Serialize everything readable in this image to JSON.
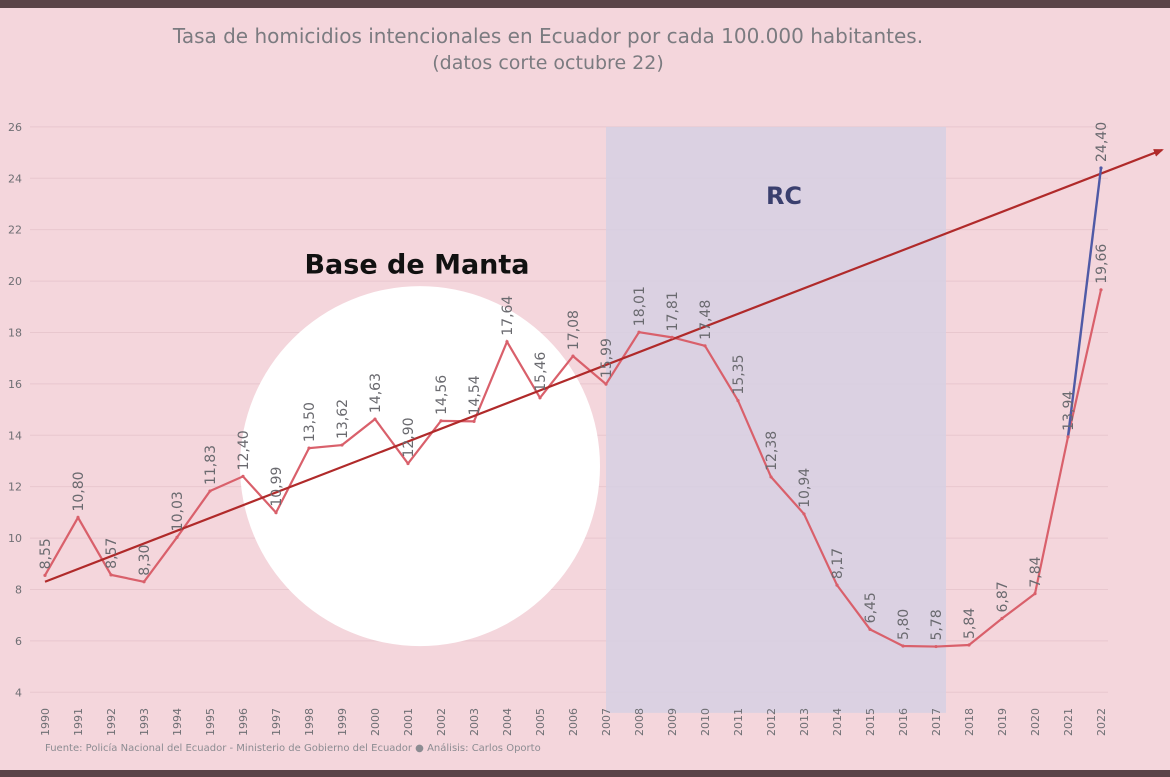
{
  "chart_data": {
    "type": "line",
    "title": "Tasa de homicidios intencionales en Ecuador por cada 100.000 habitantes.",
    "subtitle": "(datos corte octubre 22)",
    "xlabel": "",
    "ylabel": "",
    "ylim": [
      3,
      26.5
    ],
    "y_ticks": [
      "4",
      "6",
      "8",
      "10",
      "12",
      "14",
      "16",
      "18",
      "20",
      "22",
      "24",
      "26"
    ],
    "grid": true,
    "categories": [
      "1990",
      "1991",
      "1992",
      "1993",
      "1994",
      "1995",
      "1996",
      "1997",
      "1998",
      "1999",
      "2000",
      "2001",
      "2002",
      "2003",
      "2004",
      "2005",
      "2006",
      "2007",
      "2008",
      "2009",
      "2010",
      "2011",
      "2012",
      "2013",
      "2014",
      "2015",
      "2016",
      "2017",
      "2018",
      "2019",
      "2020",
      "2021",
      "2022"
    ],
    "series": [
      {
        "values": [
          8.55,
          10.8,
          8.57,
          8.3,
          10.03,
          11.83,
          12.4,
          10.99,
          13.5,
          13.62,
          14.63,
          12.9,
          14.56,
          14.54,
          17.64,
          15.46,
          17.08,
          15.99,
          18.01,
          17.81,
          17.48,
          15.35,
          12.38,
          10.94,
          8.17,
          6.45,
          5.8,
          5.78,
          5.84,
          6.87,
          7.84,
          13.94,
          19.66
        ],
        "labels": [
          "8,55",
          "10,80",
          "8,57",
          "8,30",
          "10,03",
          "11,83",
          "12,40",
          "10,99",
          "13,50",
          "13,62",
          "14,63",
          "12,90",
          "14,56",
          "14,54",
          "17,64",
          "15,46",
          "17,08",
          "15,99",
          "18,01",
          "17,81",
          "17,48",
          "15,35",
          "12,38",
          "10,94",
          "8,17",
          "6,45",
          "5,80",
          "5,78",
          "5,84",
          "6,87",
          "7,84",
          "13,94",
          "19,66"
        ],
        "color": "#d9606b"
      },
      {
        "x": [
          "2021",
          "2022"
        ],
        "values": [
          13.94,
          24.4
        ],
        "labels": [
          "",
          "24,40"
        ],
        "color": "#4f5aa6"
      }
    ],
    "trend": {
      "x": [
        "1990",
        "2023"
      ],
      "values": [
        8.3,
        25.1
      ],
      "color": "#b02a2a"
    },
    "annotations": [
      {
        "text": "RC",
        "x_range": [
          "2007",
          "2017"
        ],
        "color": "#d6d0e3"
      },
      {
        "text": "Base de Manta"
      }
    ],
    "source": "Fuente: Policía Nacional del Ecuador - Ministerio de Gobierno del Ecuador ● Análisis: Carlos Oporto"
  }
}
